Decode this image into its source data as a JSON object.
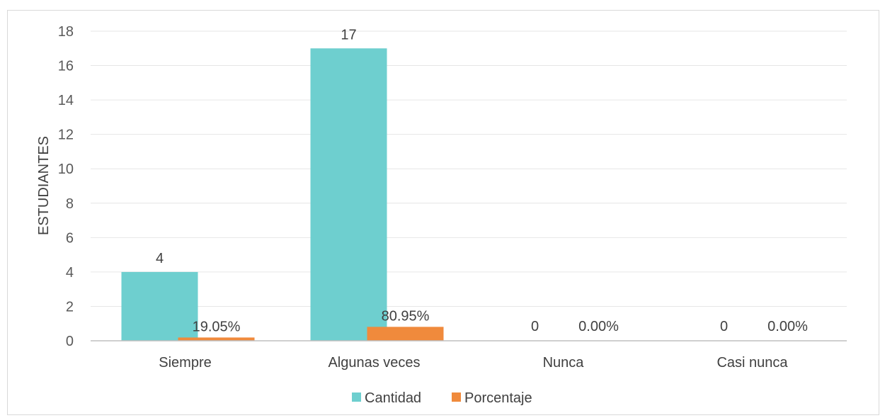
{
  "chart_data": {
    "type": "bar",
    "categories": [
      "Siempre",
      "Algunas veces",
      "Nunca",
      "Casi nunca"
    ],
    "series": [
      {
        "name": "Cantidad",
        "color": "#6ecfcf",
        "values": [
          4,
          17,
          0,
          0
        ],
        "labels": [
          "4",
          "17",
          "0",
          "0"
        ]
      },
      {
        "name": "Porcentaje",
        "color": "#f08a3c",
        "values": [
          0.1905,
          0.8095,
          0,
          0
        ],
        "labels": [
          "19.05%",
          "80.95%",
          "0.00%",
          "0.00%"
        ]
      }
    ],
    "xlabel": "",
    "ylabel": "ESTUDIANTES",
    "ylim": [
      0,
      18
    ],
    "yticks": [
      "0",
      "2",
      "4",
      "6",
      "8",
      "10",
      "12",
      "14",
      "16",
      "18"
    ],
    "grid": true,
    "legend_position": "bottom"
  }
}
